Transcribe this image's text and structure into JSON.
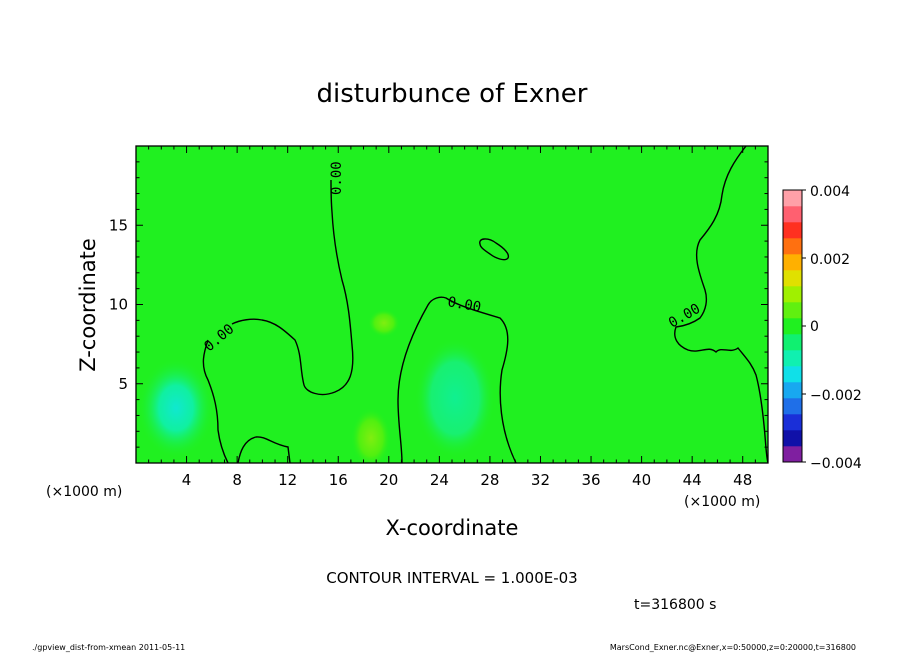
{
  "chart_data": {
    "type": "heatmap",
    "title": "disturbunce of Exner",
    "xlabel": "X-coordinate",
    "ylabel": "Z-coordinate",
    "x_unit": "(×1000 m)",
    "y_unit": "(×1000 m)",
    "xlim": [
      0,
      50
    ],
    "ylim": [
      0,
      20
    ],
    "x_ticks": [
      "4",
      "8",
      "12",
      "16",
      "20",
      "24",
      "28",
      "32",
      "36",
      "40",
      "44",
      "48"
    ],
    "y_ticks": [
      "5",
      "10",
      "15"
    ],
    "colorbar": {
      "range": [
        -0.004,
        0.004
      ],
      "labels": [
        "0.004",
        "0.002",
        "0",
        "−0.002",
        "−0.004"
      ],
      "colors": [
        "#7f1fa0",
        "#1010a8",
        "#1a2fd8",
        "#1f6fe8",
        "#18a8f0",
        "#10e0e8",
        "#10f0b0",
        "#10f070",
        "#20f020",
        "#60f010",
        "#a0f000",
        "#e0e000",
        "#ffb000",
        "#ff7010",
        "#ff3020",
        "#ff6070",
        "#ffa0a8"
      ]
    },
    "contour_labels": [
      "0.00",
      "0.00",
      "0.00",
      "0.00"
    ],
    "field_values": {
      "background": 0,
      "anomalies": [
        {
          "x": 3,
          "z": 3.5,
          "value": -0.0015
        },
        {
          "x": 25.5,
          "z": 4.5,
          "value": -0.0008
        },
        {
          "x": 18.5,
          "z": 1.5,
          "value": 0.0005
        },
        {
          "x": 19.5,
          "z": 8.5,
          "value": 0.0004
        }
      ]
    },
    "contour_interval": "CONTOUR INTERVAL = 1.000E-03",
    "time_label": "t=316800 s",
    "footer_left": "./gpview_dist-from-xmean  2011-05-11",
    "footer_right": "MarsCond_Exner.nc@Exner,x=0:50000,z=0:20000,t=316800"
  }
}
